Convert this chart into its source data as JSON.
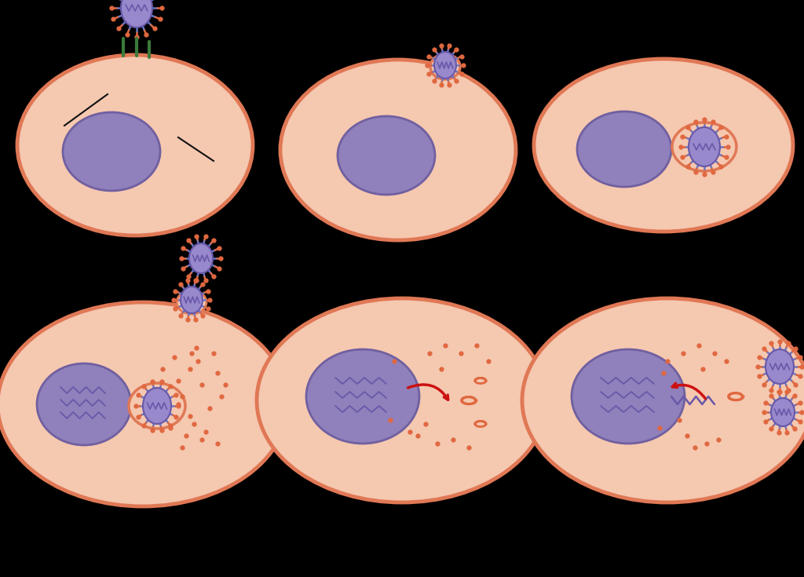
{
  "bg_color": "#000000",
  "cell_fill": "#F5C8B0",
  "cell_edge": "#E07855",
  "nucleus_fill": "#9080BB",
  "nucleus_edge": "#7060A0",
  "virus_body_fill": "#9888CC",
  "virus_body_edge": "#6858A8",
  "spike_color": "#E06840",
  "receptor_color": "#3A7A3A",
  "arrow_color": "#CC1111",
  "protein_dot_color": "#E06840",
  "annotation_line_color": "#111111",
  "mrna_color": "#6858A8",
  "blue_spike_color": "#6878C8"
}
